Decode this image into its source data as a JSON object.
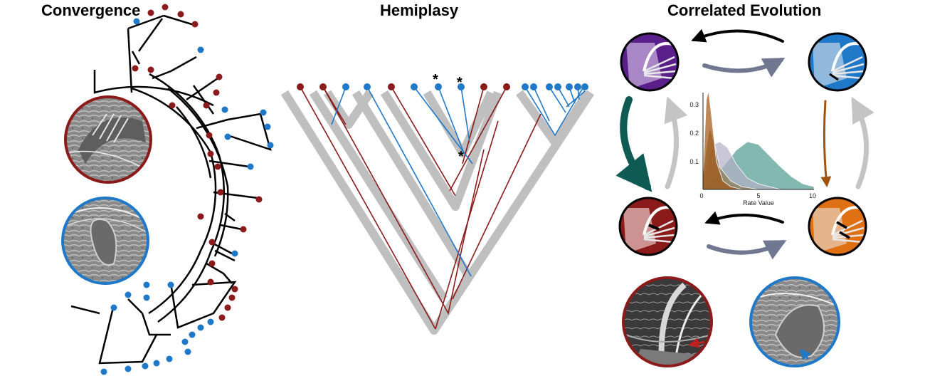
{
  "panels": {
    "convergence": {
      "title": "Convergence"
    },
    "hemiplasy": {
      "title": "Hemiplasy",
      "marker_symbol": "*"
    },
    "correlated": {
      "title": "Correlated Evolution",
      "density_plot": {
        "xlabel": "Rate Value",
        "x_ticks": [
          "0",
          "5",
          "10"
        ],
        "y_ticks": [
          "0.3",
          "0.2",
          "0.1"
        ]
      }
    }
  },
  "colors": {
    "red_state": "#8b1a1a",
    "blue_state": "#1f78c8",
    "tree_branch": "#000000",
    "gene_tree_shadow": "#bfbfbf",
    "purple_state": "#5a1f8a",
    "orange_state": "#e07014",
    "teal_arrow": "#0f5a52",
    "brown_arrow": "#a0520f",
    "slate_arrow": "#6f7890",
    "light_arrow": "#c4c4c4"
  },
  "chart_data": {
    "type": "area",
    "xlabel": "Rate Value",
    "xlim": [
      0,
      10
    ],
    "ylim": [
      0,
      0.35
    ],
    "series": [
      {
        "color": "#a0520f",
        "x": [
          0,
          0.3,
          0.5,
          0.8,
          1.2,
          1.8,
          2.5,
          3.5,
          5,
          7,
          10
        ],
        "y": [
          0.05,
          0.32,
          0.35,
          0.25,
          0.1,
          0.03,
          0.01,
          0,
          0,
          0,
          0
        ]
      },
      {
        "color": "#8a7a50",
        "x": [
          0,
          0.3,
          0.6,
          1.0,
          1.5,
          2.5,
          3.5,
          5,
          7,
          10
        ],
        "y": [
          0.05,
          0.15,
          0.22,
          0.17,
          0.08,
          0.03,
          0.01,
          0,
          0,
          0
        ]
      },
      {
        "color": "#b4b0c8",
        "x": [
          0,
          0.5,
          1.0,
          1.5,
          2.2,
          3,
          4,
          5,
          7,
          10
        ],
        "y": [
          0.02,
          0.12,
          0.16,
          0.17,
          0.15,
          0.09,
          0.04,
          0.02,
          0,
          0
        ]
      },
      {
        "color": "#4e9a90",
        "x": [
          0,
          1,
          2,
          3,
          4,
          5,
          6,
          7,
          8,
          9,
          10
        ],
        "y": [
          0.005,
          0.04,
          0.09,
          0.14,
          0.17,
          0.16,
          0.12,
          0.08,
          0.045,
          0.02,
          0.01
        ]
      }
    ]
  }
}
